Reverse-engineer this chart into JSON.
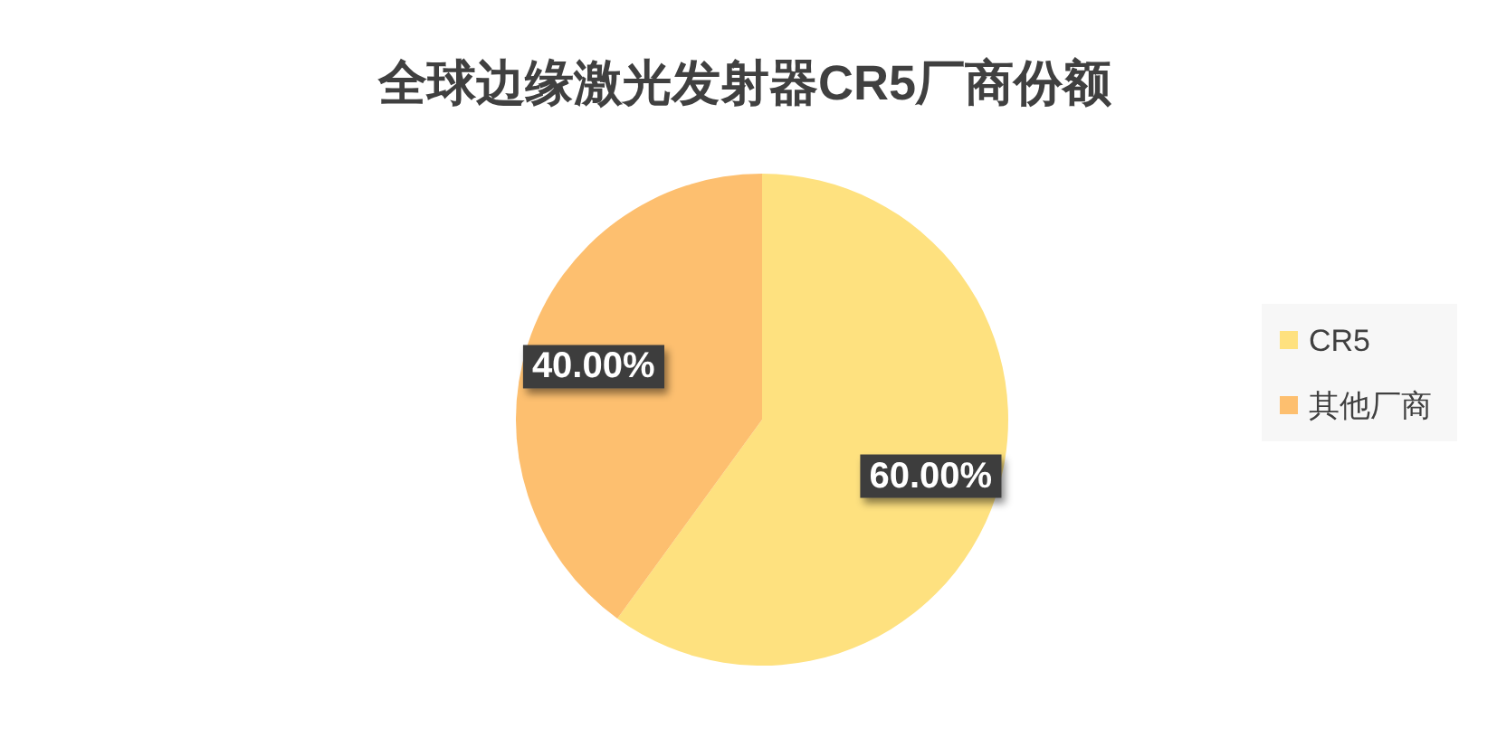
{
  "chart_data": {
    "type": "pie",
    "title": "全球边缘激光发射器CR5厂商份额",
    "categories": [
      "CR5",
      "其他厂商"
    ],
    "values": [
      60,
      40
    ],
    "colors": [
      "#fee17f",
      "#fdbf6f"
    ],
    "value_labels": [
      "60.00%",
      "40.00%"
    ],
    "legend": "right"
  }
}
